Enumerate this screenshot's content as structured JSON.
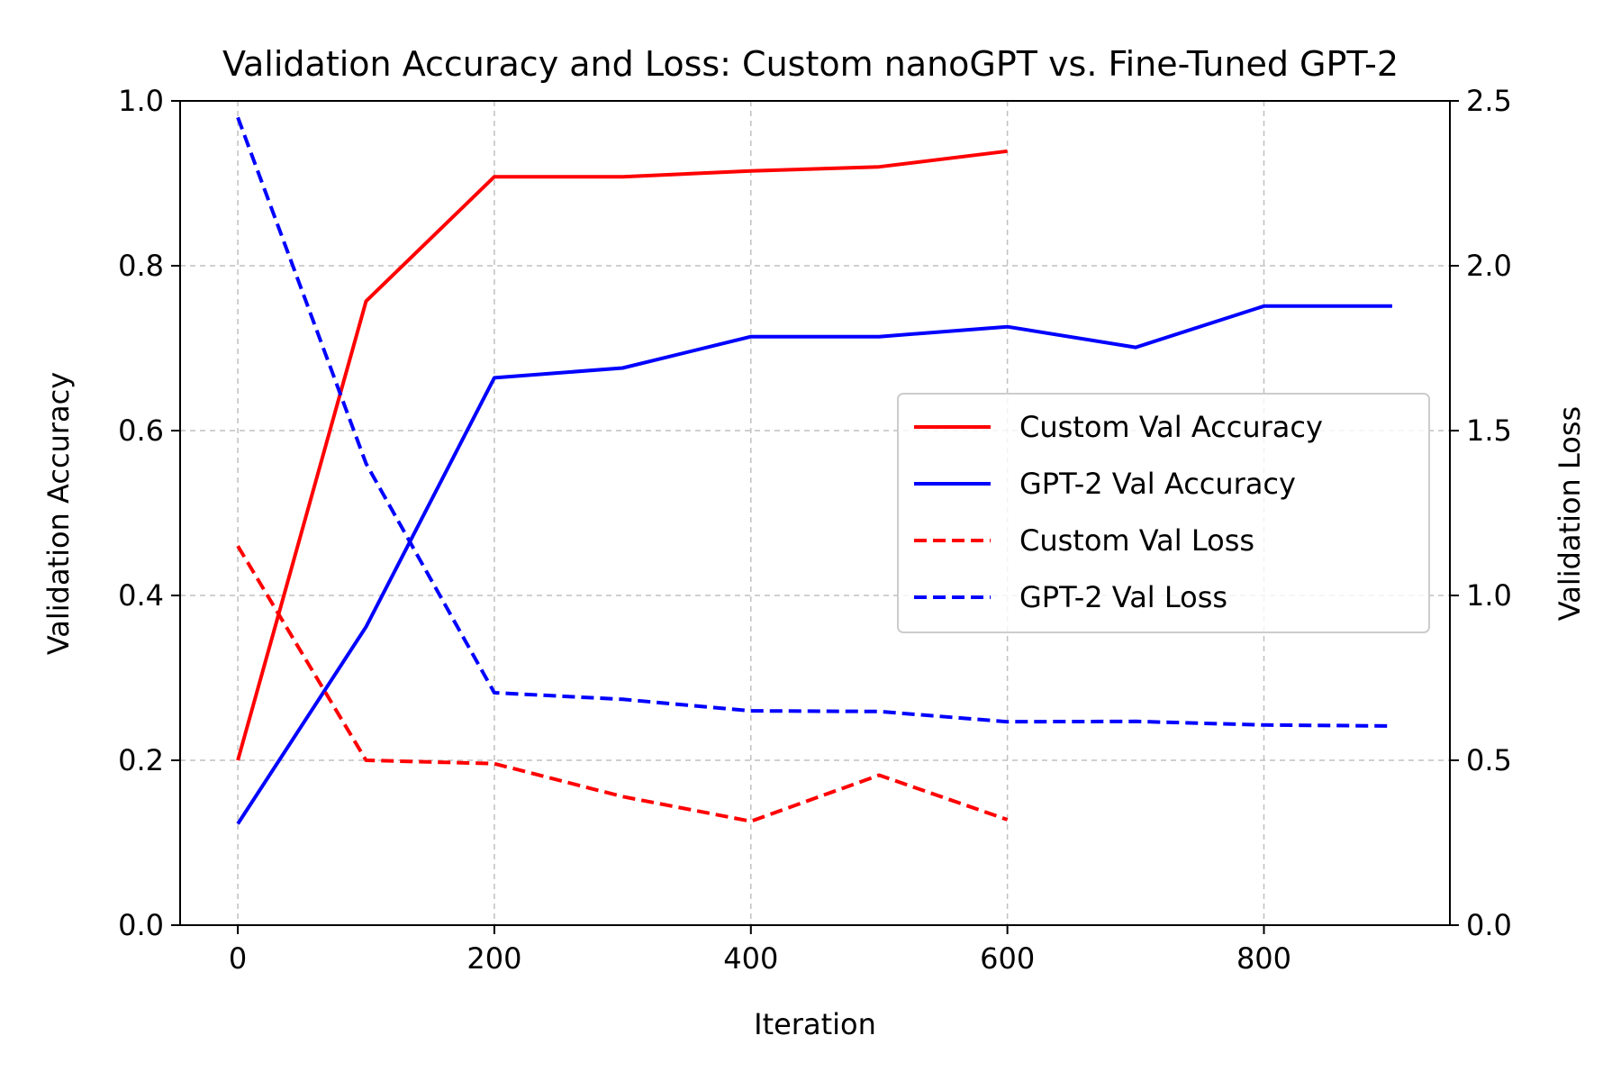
{
  "chart_data": {
    "type": "line",
    "title": "Validation Accuracy and Loss: Custom nanoGPT vs. Fine-Tuned GPT-2",
    "xlabel": "Iteration",
    "ylabel_left": "Validation Accuracy",
    "ylabel_right": "Validation Loss",
    "xlim": [
      -45,
      945
    ],
    "ylim_left": [
      0.0,
      1.0
    ],
    "ylim_right": [
      0.0,
      2.5
    ],
    "xticks": [
      0,
      200,
      400,
      600,
      800
    ],
    "xtick_labels": [
      "0",
      "200",
      "400",
      "600",
      "800"
    ],
    "yticks_left": [
      0.0,
      0.2,
      0.4,
      0.6,
      0.8,
      1.0
    ],
    "ytick_labels_left": [
      "0.0",
      "0.2",
      "0.4",
      "0.6",
      "0.8",
      "1.0"
    ],
    "yticks_right": [
      0.0,
      0.5,
      1.0,
      1.5,
      2.0,
      2.5
    ],
    "ytick_labels_right": [
      "0.0",
      "0.5",
      "1.0",
      "1.5",
      "2.0",
      "2.5"
    ],
    "grid": true,
    "legend_position": "center-right",
    "series": [
      {
        "name": "Custom Val Accuracy",
        "axis": "left",
        "style": "solid",
        "color": "#ff0000",
        "x": [
          0,
          100,
          200,
          300,
          400,
          500,
          600
        ],
        "y": [
          0.2,
          0.757,
          0.908,
          0.908,
          0.915,
          0.92,
          0.939
        ]
      },
      {
        "name": "GPT-2 Val Accuracy",
        "axis": "left",
        "style": "solid",
        "color": "#0000ff",
        "x": [
          0,
          100,
          200,
          300,
          400,
          500,
          600,
          700,
          800,
          900
        ],
        "y": [
          0.123,
          0.362,
          0.664,
          0.676,
          0.714,
          0.714,
          0.726,
          0.701,
          0.751,
          0.751
        ]
      },
      {
        "name": "Custom Val Loss",
        "axis": "right",
        "style": "dashed",
        "color": "#ff0000",
        "x": [
          0,
          100,
          200,
          300,
          400,
          500,
          600
        ],
        "y": [
          1.15,
          0.5,
          0.49,
          0.39,
          0.315,
          0.455,
          0.32
        ]
      },
      {
        "name": "GPT-2 Val Loss",
        "axis": "right",
        "style": "dashed",
        "color": "#0000ff",
        "x": [
          0,
          100,
          200,
          300,
          400,
          500,
          600,
          700,
          800,
          900
        ],
        "y": [
          2.45,
          1.4,
          0.705,
          0.685,
          0.65,
          0.648,
          0.617,
          0.618,
          0.607,
          0.604
        ]
      }
    ]
  }
}
